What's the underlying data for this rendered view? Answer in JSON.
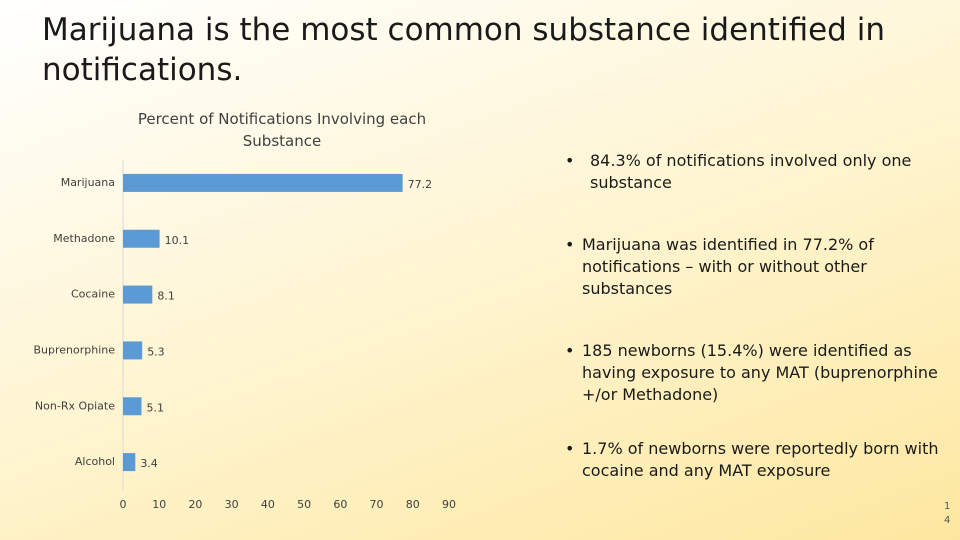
{
  "title": "Marijuana is the most common substance identified in notifications.",
  "chart_data": {
    "type": "bar",
    "orientation": "horizontal",
    "title": "Percent of Notifications Involving each Substance",
    "categories": [
      "Marijuana",
      "Methadone",
      "Cocaine",
      "Buprenorphine",
      "Non-Rx Opiate",
      "Alcohol"
    ],
    "values": [
      77.2,
      10.1,
      8.1,
      5.3,
      5.1,
      3.4
    ],
    "color": "#5b9bd5",
    "xlim": [
      0,
      90
    ],
    "xticks": [
      0,
      10,
      20,
      30,
      40,
      50,
      60,
      70,
      80,
      90
    ],
    "grid": false
  },
  "bullets": [
    "84.3% of notifications involved only one substance",
    "Marijuana was identified in 77.2% of notifications – with or without other substances",
    "185 newborns (15.4%) were identified as having exposure to any MAT (buprenorphine +/or Methadone)",
    "1.7% of newborns were reportedly born with cocaine and any MAT exposure"
  ],
  "slide_number": "14"
}
